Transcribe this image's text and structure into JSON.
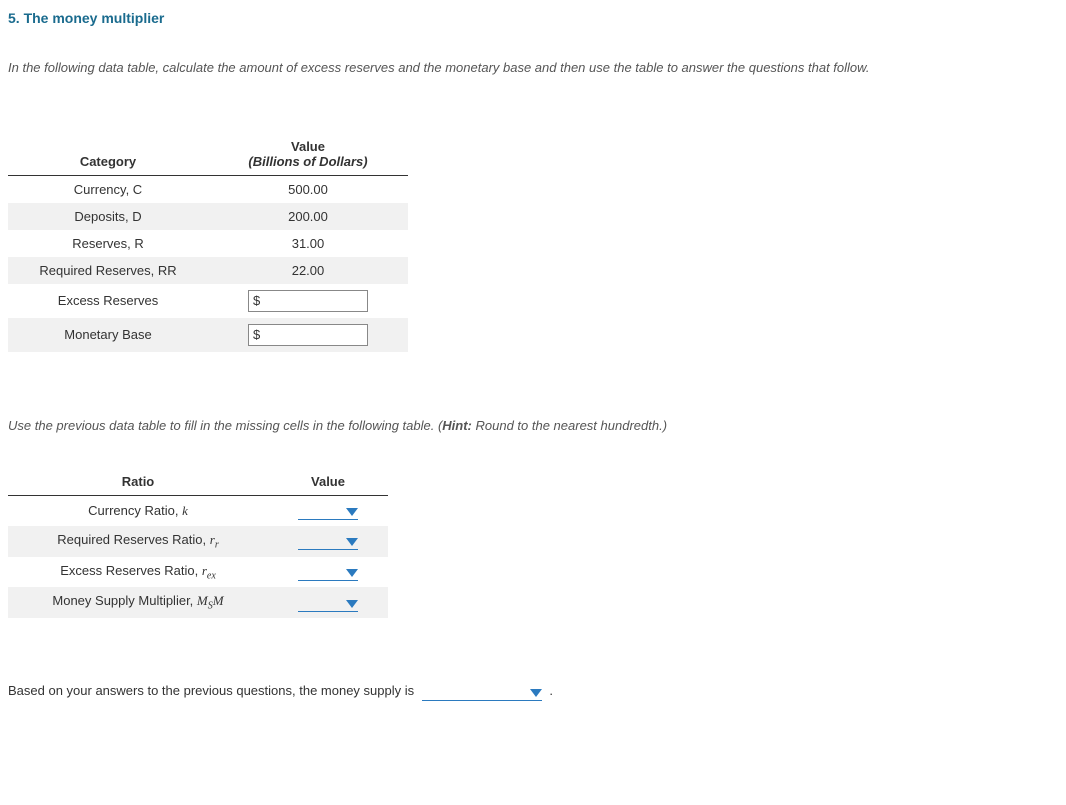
{
  "section": {
    "title": "5. The money multiplier"
  },
  "instruction1": "In the following data table, calculate the amount of excess reserves and the monetary base and then use the table to answer the questions that follow.",
  "table1": {
    "head_category": "Category",
    "head_value_top": "Value",
    "head_value_sub": "(Billions of Dollars)",
    "rows": [
      {
        "label": "Currency, C",
        "value": "500.00",
        "input": false,
        "striped": false
      },
      {
        "label": "Deposits, D",
        "value": "200.00",
        "input": false,
        "striped": true
      },
      {
        "label": "Reserves, R",
        "value": "31.00",
        "input": false,
        "striped": false
      },
      {
        "label": "Required Reserves, RR",
        "value": "22.00",
        "input": false,
        "striped": true
      },
      {
        "label": "Excess Reserves",
        "value": "",
        "input": true,
        "prefix": "$",
        "striped": false
      },
      {
        "label": "Monetary Base",
        "value": "",
        "input": true,
        "prefix": "$",
        "striped": true
      }
    ]
  },
  "instruction2_a": "Use the previous data table to fill in the missing cells in the following table. (",
  "instruction2_hint_label": "Hint:",
  "instruction2_b": " Round to the nearest hundredth.)",
  "table2": {
    "head_ratio": "Ratio",
    "head_value": "Value",
    "rows": [
      {
        "label_html": "Currency Ratio, <span class='math-ital'>k</span>",
        "striped": false
      },
      {
        "label_html": "Required Reserves Ratio, <span class='math-ital'>r</span><span class='math-sub'>r</span>",
        "striped": true
      },
      {
        "label_html": "Excess Reserves Ratio, <span class='math-ital'>r</span><span class='math-sub'>ex</span>",
        "striped": false
      },
      {
        "label_html": "Money Supply Multiplier, <span class='math-ital'>M</span><span class='math-sub'>S</span><span class='math-ital'>M</span>",
        "striped": true
      }
    ]
  },
  "closing_a": "Based on your answers to the previous questions, the money supply is",
  "closing_b": "."
}
